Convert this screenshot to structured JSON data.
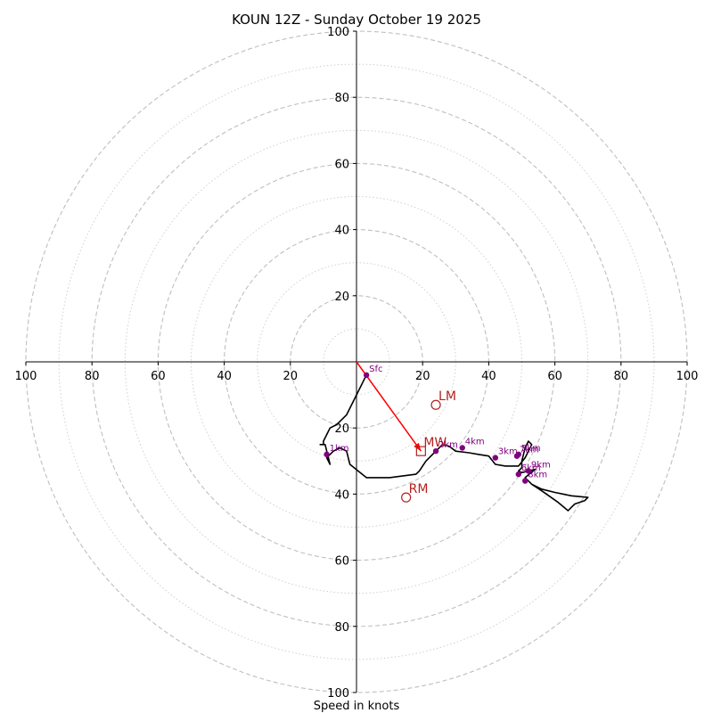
{
  "chart_data": {
    "type": "hodograph",
    "title": "KOUN 12Z - Sunday October 19 2025",
    "xlabel": "Speed in knots",
    "range": [
      -100,
      100
    ],
    "ring_major": [
      20,
      40,
      60,
      80,
      100
    ],
    "ring_minor": [
      10,
      30,
      50,
      70,
      90
    ],
    "x_tick_labels": [
      "100",
      "80",
      "60",
      "40",
      "20",
      "20",
      "40",
      "60",
      "80",
      "100"
    ],
    "y_tick_labels_upper": [
      "20",
      "40",
      "60",
      "80",
      "100"
    ],
    "y_tick_labels_lower": [
      "20",
      "40",
      "60",
      "80",
      "100"
    ],
    "units": "knots",
    "trace": {
      "u": [
        3,
        0,
        -3,
        -6,
        -8,
        -9,
        -10,
        -10,
        -11,
        -9.5,
        -9,
        -8,
        -9,
        -7,
        -5,
        -3,
        -2,
        3,
        10,
        18,
        19,
        21,
        24,
        26,
        28,
        30,
        34,
        37,
        40,
        42,
        45,
        47,
        49,
        51,
        52,
        53,
        52,
        51,
        50,
        50,
        49,
        50,
        52,
        54,
        51,
        53,
        55,
        56,
        60,
        65,
        70,
        69,
        66,
        65,
        64,
        61,
        56,
        53
      ],
      "v": [
        -4,
        -10,
        -16,
        -19,
        -20,
        -22,
        -24,
        -25,
        -25,
        -25,
        -27,
        -31,
        -29,
        -27,
        -26,
        -27,
        -31,
        -35,
        -35,
        -34,
        -33,
        -30,
        -27,
        -25,
        -25.5,
        -27,
        -27.5,
        -28,
        -28.5,
        -31,
        -31.5,
        -31.5,
        -31.5,
        -29,
        -27,
        -25,
        -24,
        -26,
        -30,
        -32,
        -33,
        -33.5,
        -33,
        -32.5,
        -35,
        -37,
        -38,
        -38.5,
        -39.5,
        -40.5,
        -41,
        -42,
        -43,
        -44,
        -45,
        -42.5,
        -39,
        -37
      ]
    },
    "height_markers": [
      {
        "label": "Sfc",
        "u": 3,
        "v": -4
      },
      {
        "label": "1km",
        "u": -9,
        "v": -28
      },
      {
        "label": "2km",
        "u": 24,
        "v": -27
      },
      {
        "label": "3km",
        "u": 42,
        "v": -29
      },
      {
        "label": "4km",
        "u": 32,
        "v": -26
      },
      {
        "label": "5km",
        "u": 49,
        "v": -28
      },
      {
        "label": "7km",
        "u": 48.5,
        "v": -28.5
      },
      {
        "label": "6km",
        "u": 49,
        "v": -34
      },
      {
        "label": "8km",
        "u": 51,
        "v": -36
      },
      {
        "label": "9km",
        "u": 52,
        "v": -33
      }
    ],
    "storm_vectors": [
      {
        "label": "LM",
        "u": 24,
        "v": -13,
        "marker": "circle"
      },
      {
        "label": "RM",
        "u": 15,
        "v": -41,
        "marker": "circle"
      },
      {
        "label": "MW",
        "u": 19.5,
        "v": -27,
        "marker": "square"
      }
    ],
    "arrow": {
      "from_u": 0,
      "from_v": 0,
      "to_u": 19.5,
      "to_v": -27
    },
    "colors": {
      "trace": "#000000",
      "markers": "#800080",
      "vectors": "#b22222",
      "arrow": "#ff0000",
      "grid": "#bfbfbf"
    }
  }
}
